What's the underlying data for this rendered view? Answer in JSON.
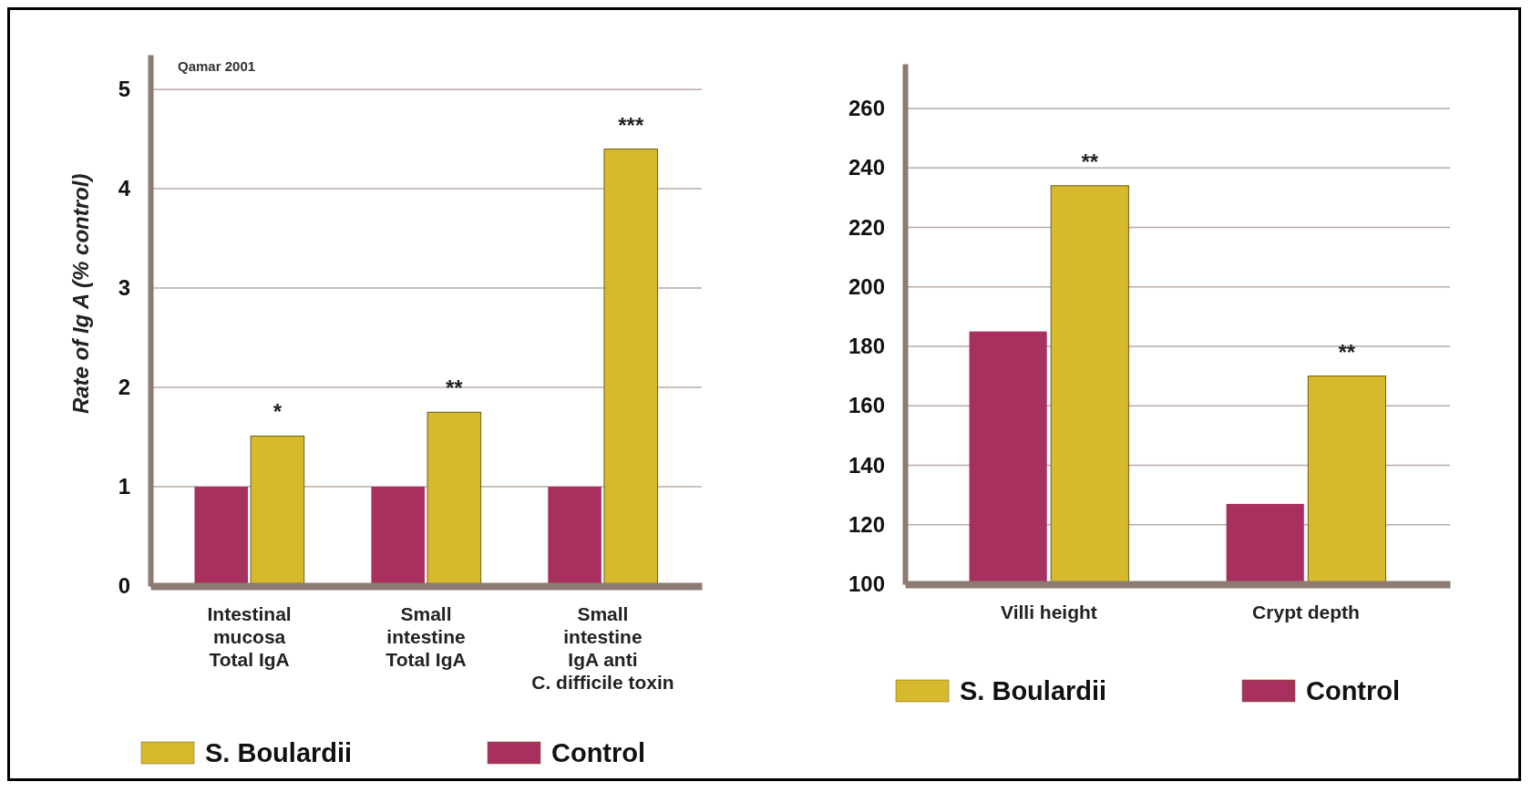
{
  "chart_data": [
    {
      "type": "bar",
      "ylabel": "Rate of Ig A (% control)",
      "categories": [
        "Intestinal\nmucosa\nTotal IgA",
        "Small\nintestine\nTotal IgA",
        "Small\nintestine\nIgA anti\nC. difficile toxin"
      ],
      "series": [
        {
          "name": "Control",
          "color": "#a8305f",
          "values": [
            1,
            1,
            1
          ]
        },
        {
          "name": "S. Boulardii",
          "color": "#d6b92c",
          "values": [
            1.51,
            1.75,
            4.4
          ]
        }
      ],
      "ylim": [
        0,
        5.35
      ],
      "yticks": [
        0,
        1,
        2,
        3,
        4,
        5
      ],
      "grid": "y",
      "legend": "bottom",
      "annotations": [
        "Qamar 2001",
        {
          "text": "*",
          "x": "Intestinal\nmucosa\nTotal IgA",
          "y": 1.51
        },
        {
          "text": "**",
          "x": "Small\nintestine\nTotal IgA",
          "y": 1.75
        },
        {
          "text": "***",
          "x": "Small\nintestine\nIgA anti\nC. difficile toxin",
          "y": 4.4
        }
      ]
    },
    {
      "type": "bar",
      "categories": [
        "Villi height",
        "Crypt depth"
      ],
      "series": [
        {
          "name": "Control",
          "color": "#a8305f",
          "values": [
            185,
            127
          ]
        },
        {
          "name": "S. Boulardii",
          "color": "#d6b92c",
          "values": [
            234,
            170
          ]
        }
      ],
      "ylim": [
        100,
        275
      ],
      "yticks": [
        100,
        120,
        140,
        160,
        180,
        200,
        220,
        240,
        260
      ],
      "grid": "y",
      "legend": "bottom",
      "annotations": [
        {
          "text": "**",
          "x": "Villi height",
          "y": 234
        },
        {
          "text": "**",
          "x": "Crypt depth",
          "y": 170
        }
      ]
    }
  ]
}
